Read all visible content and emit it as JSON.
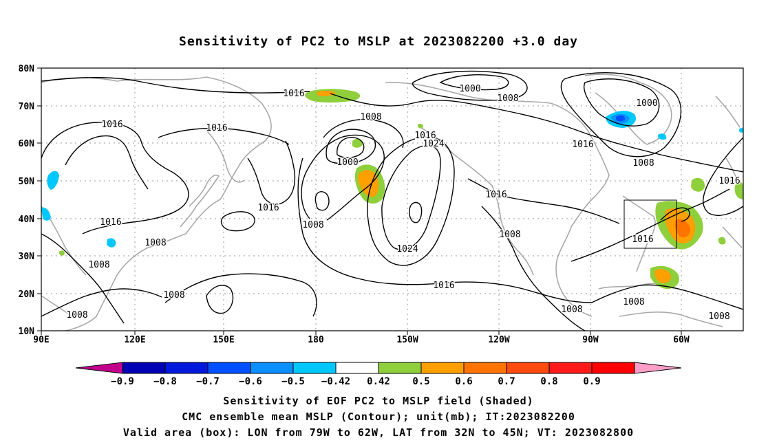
{
  "title": "Sensitivity of PC2 to MSLP at 2023082200 +3.0 day",
  "map": {
    "lat_labels": [
      "80N",
      "70N",
      "60N",
      "50N",
      "40N",
      "30N",
      "20N",
      "10N"
    ],
    "lon_labels": [
      "90E",
      "120E",
      "150E",
      "180",
      "150W",
      "120W",
      "90W",
      "60W"
    ],
    "contour_labels": [
      "1016",
      "1016",
      "1016",
      "1016",
      "1016",
      "1008",
      "1008",
      "1008",
      "1008",
      "1000",
      "1008",
      "1016",
      "1024",
      "1000",
      "1008",
      "1000",
      "1016",
      "1008",
      "1016",
      "1016",
      "1016",
      "1008",
      "1008",
      "1024",
      "1016",
      "1008",
      "1008",
      "1008"
    ],
    "valid_box": {
      "lon_range": [
        "79W",
        "62W"
      ],
      "lat_range": [
        "32N",
        "45N"
      ]
    },
    "grid": "dotted",
    "colors": {
      "land_outline": "#a9a9a9",
      "contour": "#000000",
      "positive_0_42": "#8fcf3c",
      "positive_0_5": "#ff9f00",
      "positive_0_6": "#ff7400",
      "negative_0_42": "#00c8ff",
      "negative_0_5": "#0a90ff",
      "negative_0_6": "#0050ff"
    }
  },
  "colorbar": {
    "labels": [
      "-0.9",
      "-0.8",
      "-0.7",
      "-0.6",
      "-0.5",
      "-0.42",
      "0.42",
      "0.5",
      "0.6",
      "0.7",
      "0.8",
      "0.9"
    ],
    "colors": [
      "#c3008c",
      "#0000b4",
      "#0018dc",
      "#0050ff",
      "#0a90ff",
      "#00c8ff",
      "#ffffff",
      "#8fcf3c",
      "#ff9f00",
      "#ff7400",
      "#ff4a10",
      "#ff1a1a",
      "#ff0000",
      "#ff9fc8"
    ]
  },
  "captions": {
    "line1": "Sensitivity of EOF PC2 to MSLP field (Shaded)",
    "line2": "CMC ensemble mean MSLP (Contour); unit(mb); IT:2023082200",
    "line3": "Valid area (box): LON from 79W to 62W, LAT from 32N to 45N; VT: 2023082800"
  }
}
